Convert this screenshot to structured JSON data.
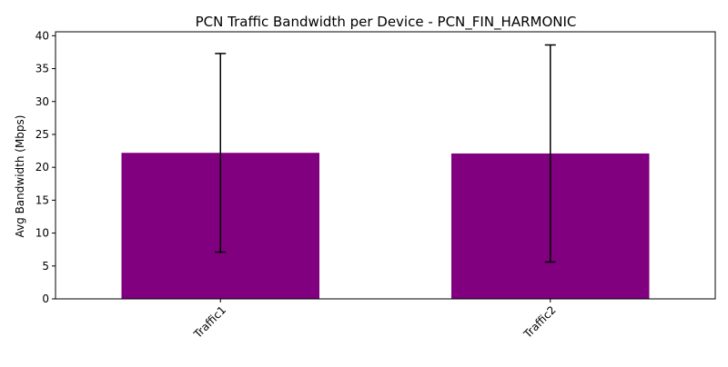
{
  "chart_data": {
    "type": "bar",
    "title": "PCN Traffic Bandwidth per Device - PCN_FIN_HARMONIC",
    "xlabel": "",
    "ylabel": "Avg Bandwidth (Mbps)",
    "categories": [
      "Traffic1",
      "Traffic2"
    ],
    "series": [
      {
        "values": [
          22.2,
          22.1
        ],
        "error": [
          15.1,
          16.5
        ],
        "color": "#800080"
      }
    ],
    "ylim": [
      0,
      40.6
    ],
    "yticks": [
      "0",
      "5",
      "10",
      "15",
      "20",
      "25",
      "30",
      "35",
      "40"
    ],
    "ytick_values": [
      0,
      5,
      10,
      15,
      20,
      25,
      30,
      35,
      40
    ],
    "xtick_rotation_deg": 45,
    "grid": false,
    "legend": "none"
  }
}
